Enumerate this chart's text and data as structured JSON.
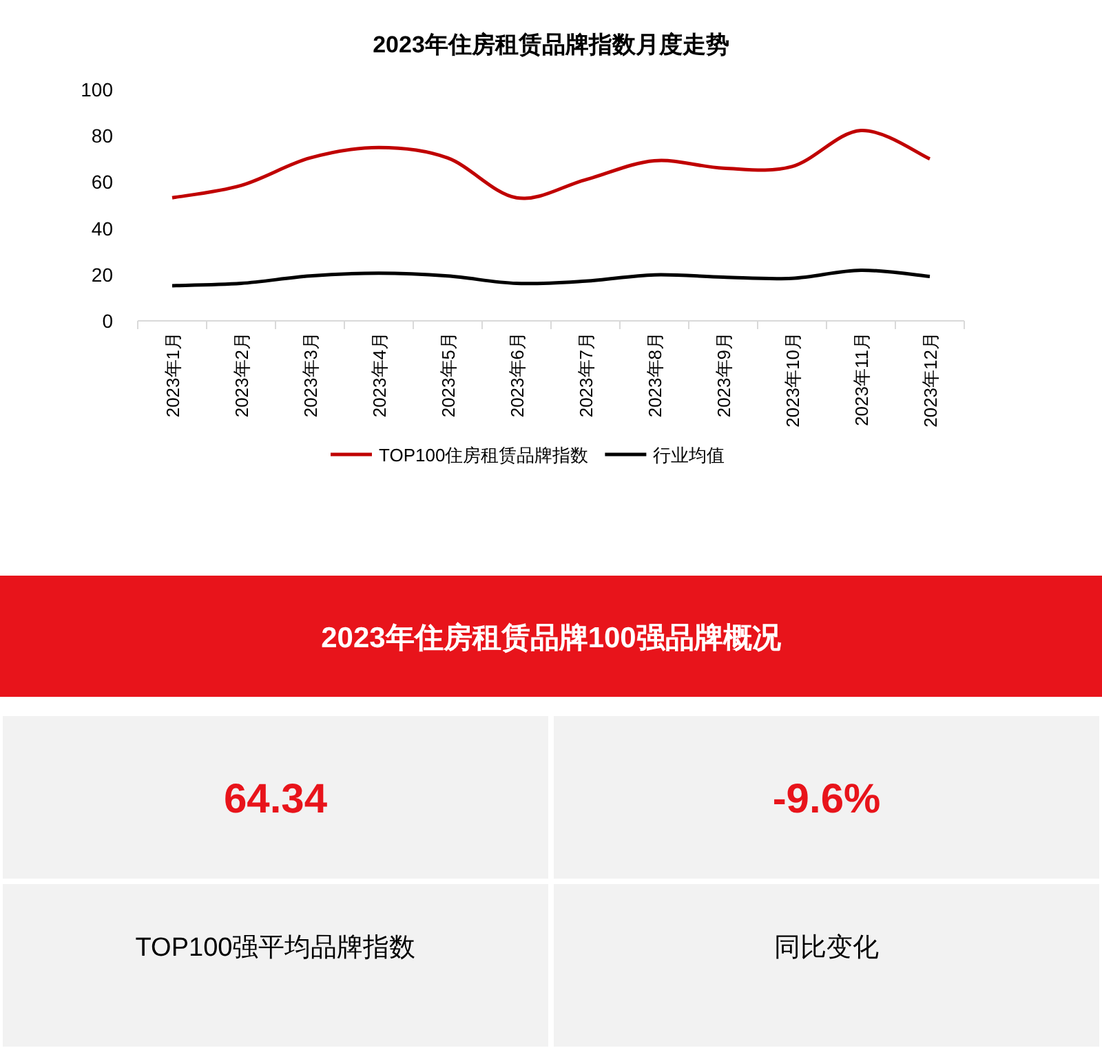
{
  "chart_data": [
    {
      "type": "line",
      "title": "2023年住房租赁品牌指数月度走势",
      "categories": [
        "2023年1月",
        "2023年2月",
        "2023年3月",
        "2023年4月",
        "2023年5月",
        "2023年6月",
        "2023年7月",
        "2023年8月",
        "2023年9月",
        "2023年10月",
        "2023年11月",
        "2023年12月"
      ],
      "series": [
        {
          "name": "TOP100住房租赁品牌指数",
          "color": "#c00000",
          "values": [
            53.2,
            58.5,
            70.4,
            74.9,
            70.4,
            53.2,
            61,
            69.2,
            66,
            66.7,
            82.3,
            70
          ]
        },
        {
          "name": "行业均值",
          "color": "#000000",
          "values": [
            15.2,
            16.2,
            19.4,
            20.6,
            19.4,
            16.2,
            17.2,
            19.9,
            18.9,
            18.4,
            21.9,
            19.2
          ]
        }
      ],
      "ylim": [
        0,
        100
      ],
      "yticks": [
        0,
        20,
        40,
        60,
        80,
        100
      ],
      "grid": false,
      "legend": "bottom",
      "marker": "none",
      "line_style": "solid"
    },
    {
      "type": "other",
      "title": "2023年住房租赁品牌100强品牌概况",
      "annotations": [
        "64.34",
        "-9.6%",
        "TOP100强平均品牌指数",
        "同比变化"
      ]
    }
  ]
}
